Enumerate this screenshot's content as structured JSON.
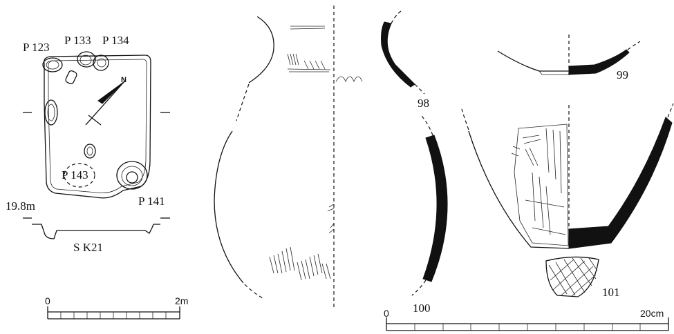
{
  "feature_plan": {
    "name": "S K21",
    "elevation": "19.8m",
    "pits": [
      "P 123",
      "P 133",
      "P 134",
      "P 143",
      "P 141"
    ],
    "north_label": "N"
  },
  "scales": {
    "plan": {
      "start": "0",
      "end": "2m"
    },
    "pottery": {
      "start": "0",
      "end": "20cm"
    }
  },
  "artifacts": [
    "98",
    "99",
    "100",
    "101"
  ],
  "colors": {
    "ink": "#111111",
    "paper": "#ffffff"
  }
}
